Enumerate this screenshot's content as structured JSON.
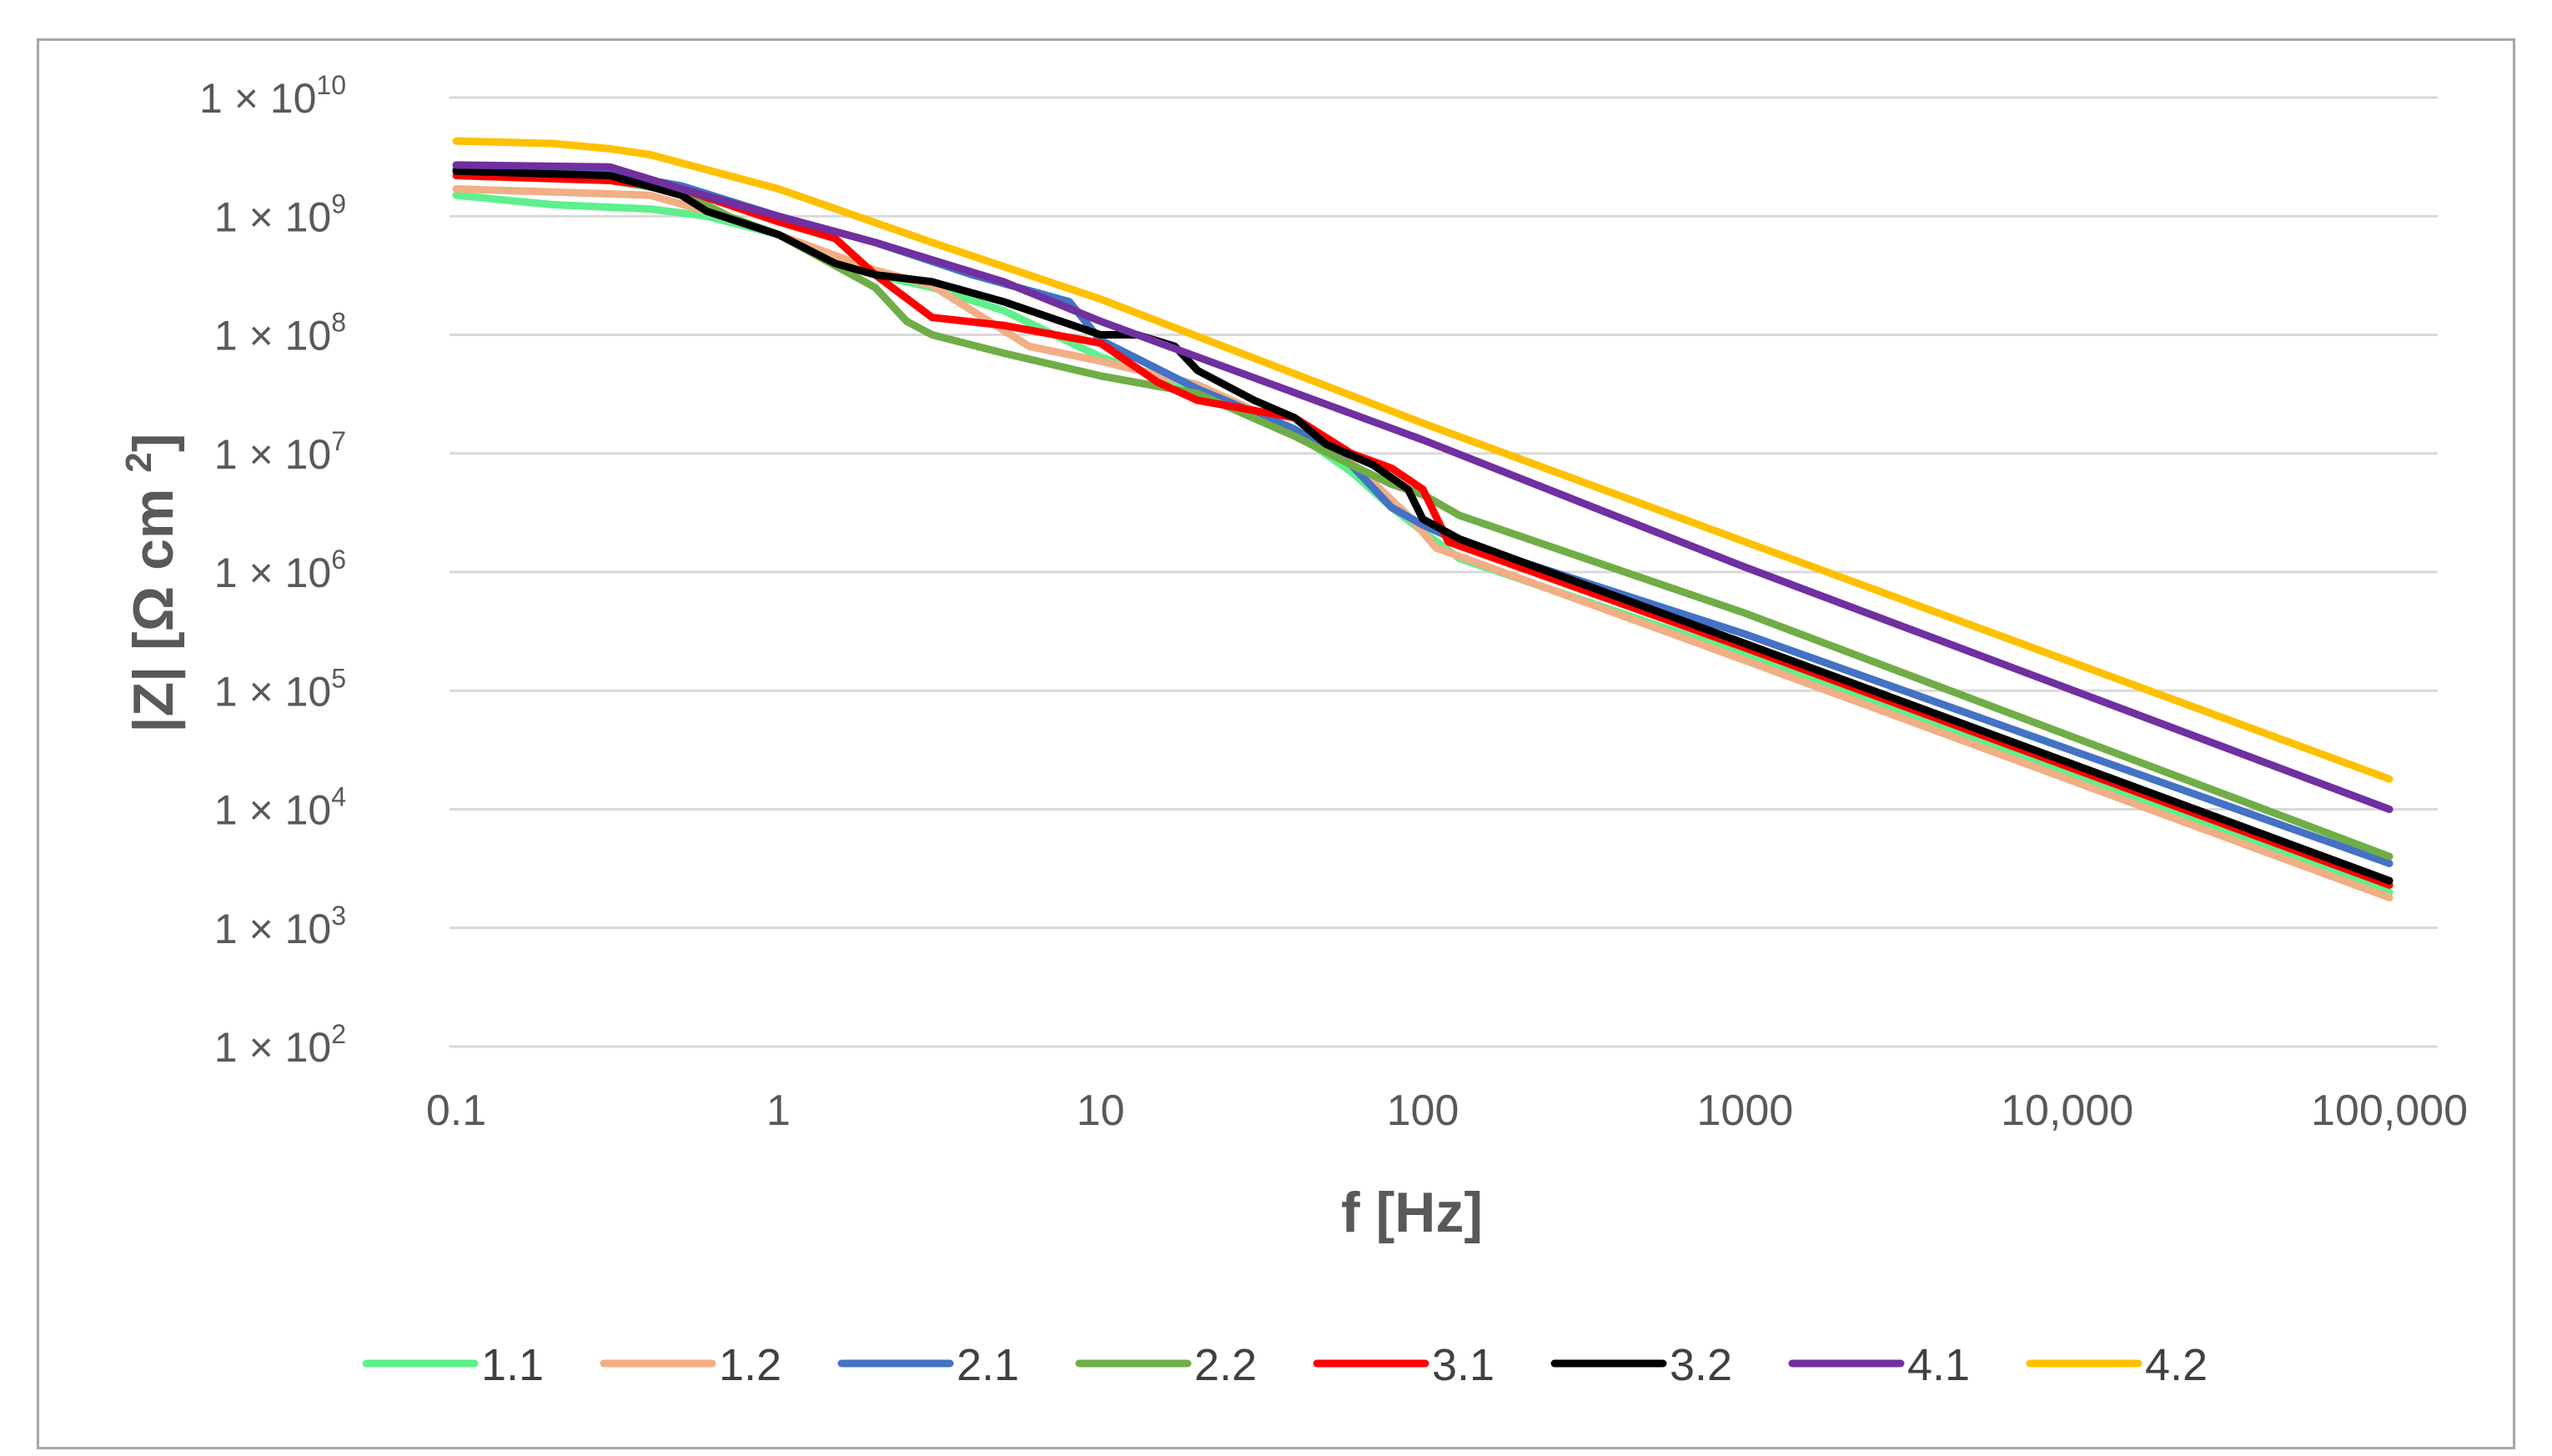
{
  "chart_data": {
    "type": "line",
    "title": "",
    "xlabel": "f [Hz]",
    "ylabel": "|Z| [Ω cm²]",
    "x_scale": "log",
    "y_scale": "log",
    "xlim": [
      0.1,
      100000
    ],
    "ylim": [
      100,
      10000000000
    ],
    "grid": true,
    "legend_position": "bottom",
    "x_ticks": [
      {
        "value": 0.1,
        "label": "0.1"
      },
      {
        "value": 1,
        "label": "1"
      },
      {
        "value": 10,
        "label": "10"
      },
      {
        "value": 100,
        "label": "100"
      },
      {
        "value": 1000,
        "label": "1000"
      },
      {
        "value": 10000,
        "label": "10,000"
      },
      {
        "value": 100000,
        "label": "100,000"
      }
    ],
    "y_ticks": [
      {
        "value": 10000000000,
        "label": "1 × 10",
        "exp": "10"
      },
      {
        "value": 1000000000,
        "label": "1 × 10",
        "exp": "9"
      },
      {
        "value": 100000000,
        "label": "1 × 10",
        "exp": "8"
      },
      {
        "value": 10000000,
        "label": "1 × 10",
        "exp": "7"
      },
      {
        "value": 1000000,
        "label": "1 × 10",
        "exp": "6"
      },
      {
        "value": 100000,
        "label": "1 × 10",
        "exp": "5"
      },
      {
        "value": 10000,
        "label": "1 × 10",
        "exp": "4"
      },
      {
        "value": 1000,
        "label": "1 × 10",
        "exp": "3"
      },
      {
        "value": 100,
        "label": "1 × 10",
        "exp": "2"
      }
    ],
    "series": [
      {
        "name": "1.1",
        "color": "#5ef08c",
        "points": [
          [
            0.1,
            1500000000.0
          ],
          [
            0.2,
            1250000000.0
          ],
          [
            0.4,
            1150000000.0
          ],
          [
            0.6,
            1000000000.0
          ],
          [
            1,
            700000000.0
          ],
          [
            2,
            320000000.0
          ],
          [
            3,
            250000000.0
          ],
          [
            5,
            160000000.0
          ],
          [
            10,
            65000000.0
          ],
          [
            20,
            35000000.0
          ],
          [
            40,
            15000000.0
          ],
          [
            60,
            7000000.0
          ],
          [
            80,
            3500000.0
          ],
          [
            100,
            2200000.0
          ],
          [
            130,
            1300000.0
          ],
          [
            1000,
            200000.0
          ],
          [
            100000,
            2000.0
          ]
        ]
      },
      {
        "name": "1.2",
        "color": "#f2ae85",
        "points": [
          [
            0.1,
            1700000000.0
          ],
          [
            0.2,
            1600000000.0
          ],
          [
            0.4,
            1500000000.0
          ],
          [
            0.6,
            1100000000.0
          ],
          [
            1,
            700000000.0
          ],
          [
            2,
            350000000.0
          ],
          [
            3,
            260000000.0
          ],
          [
            6,
            80000000.0
          ],
          [
            10,
            60000000.0
          ],
          [
            20,
            38000000.0
          ],
          [
            40,
            16000000.0
          ],
          [
            60,
            8500000.0
          ],
          [
            90,
            3000000.0
          ],
          [
            110,
            1600000.0
          ],
          [
            1000,
            180000.0
          ],
          [
            100000,
            1800.0
          ]
        ]
      },
      {
        "name": "2.1",
        "color": "#4472c4",
        "points": [
          [
            0.1,
            2500000000.0
          ],
          [
            0.3,
            2300000000.0
          ],
          [
            0.5,
            1800000000.0
          ],
          [
            1,
            1000000000.0
          ],
          [
            2,
            600000000.0
          ],
          [
            4,
            320000000.0
          ],
          [
            8,
            190000000.0
          ],
          [
            10,
            90000000.0
          ],
          [
            20,
            35000000.0
          ],
          [
            40,
            16000000.0
          ],
          [
            60,
            8000000.0
          ],
          [
            80,
            3500000.0
          ],
          [
            100,
            2500000.0
          ],
          [
            130,
            1800000.0
          ],
          [
            1000,
            300000.0
          ],
          [
            100000,
            3500.0
          ]
        ]
      },
      {
        "name": "2.2",
        "color": "#70ad47",
        "points": [
          [
            0.1,
            2200000000.0
          ],
          [
            0.3,
            2000000000.0
          ],
          [
            0.5,
            1600000000.0
          ],
          [
            0.7,
            1000000000.0
          ],
          [
            1,
            700000000.0
          ],
          [
            2,
            250000000.0
          ],
          [
            2.5,
            130000000.0
          ],
          [
            3,
            100000000.0
          ],
          [
            5,
            70000000.0
          ],
          [
            10,
            45000000.0
          ],
          [
            20,
            32000000.0
          ],
          [
            40,
            14000000.0
          ],
          [
            60,
            8000000.0
          ],
          [
            80,
            5500000.0
          ],
          [
            100,
            4500000.0
          ],
          [
            130,
            3000000.0
          ],
          [
            1000,
            450000.0
          ],
          [
            100000,
            4000.0
          ]
        ]
      },
      {
        "name": "3.1",
        "color": "#ff0000",
        "points": [
          [
            0.1,
            2200000000.0
          ],
          [
            0.3,
            2000000000.0
          ],
          [
            0.5,
            1700000000.0
          ],
          [
            1,
            900000000.0
          ],
          [
            1.5,
            650000000.0
          ],
          [
            2,
            320000000.0
          ],
          [
            3,
            140000000.0
          ],
          [
            5,
            120000000.0
          ],
          [
            10,
            85000000.0
          ],
          [
            15,
            40000000.0
          ],
          [
            20,
            28000000.0
          ],
          [
            40,
            20000000.0
          ],
          [
            60,
            10000000.0
          ],
          [
            80,
            7500000.0
          ],
          [
            100,
            5000000.0
          ],
          [
            120,
            1800000.0
          ],
          [
            1000,
            230000.0
          ],
          [
            100000,
            2300.0
          ]
        ]
      },
      {
        "name": "3.2",
        "color": "#000000",
        "points": [
          [
            0.1,
            2400000000.0
          ],
          [
            0.3,
            2200000000.0
          ],
          [
            0.5,
            1500000000.0
          ],
          [
            0.6,
            1100000000.0
          ],
          [
            1,
            700000000.0
          ],
          [
            1.5,
            400000000.0
          ],
          [
            2,
            320000000.0
          ],
          [
            3,
            280000000.0
          ],
          [
            5,
            190000000.0
          ],
          [
            10,
            100000000.0
          ],
          [
            13,
            100000000.0
          ],
          [
            17,
            80000000.0
          ],
          [
            20,
            50000000.0
          ],
          [
            30,
            28000000.0
          ],
          [
            40,
            20000000.0
          ],
          [
            50,
            12000000.0
          ],
          [
            70,
            8000000.0
          ],
          [
            90,
            5000000.0
          ],
          [
            100,
            2800000.0
          ],
          [
            130,
            1900000.0
          ],
          [
            1000,
            250000.0
          ],
          [
            100000,
            2500.0
          ]
        ]
      },
      {
        "name": "4.1",
        "color": "#7030a0",
        "points": [
          [
            0.1,
            2700000000.0
          ],
          [
            0.3,
            2600000000.0
          ],
          [
            0.5,
            1700000000.0
          ],
          [
            1,
            1000000000.0
          ],
          [
            2,
            600000000.0
          ],
          [
            5,
            280000000.0
          ],
          [
            10,
            130000000.0
          ],
          [
            100,
            13000000.0
          ],
          [
            1000,
            1100000.0
          ],
          [
            100000,
            10000.0
          ]
        ]
      },
      {
        "name": "4.2",
        "color": "#ffc000",
        "points": [
          [
            0.1,
            4300000000.0
          ],
          [
            0.2,
            4100000000.0
          ],
          [
            0.3,
            3700000000.0
          ],
          [
            0.4,
            3300000000.0
          ],
          [
            0.7,
            2200000000.0
          ],
          [
            1,
            1700000000.0
          ],
          [
            3,
            600000000.0
          ],
          [
            10,
            200000000.0
          ],
          [
            100,
            18000000.0
          ],
          [
            1000,
            1800000.0
          ],
          [
            100000,
            18000.0
          ]
        ]
      }
    ]
  }
}
